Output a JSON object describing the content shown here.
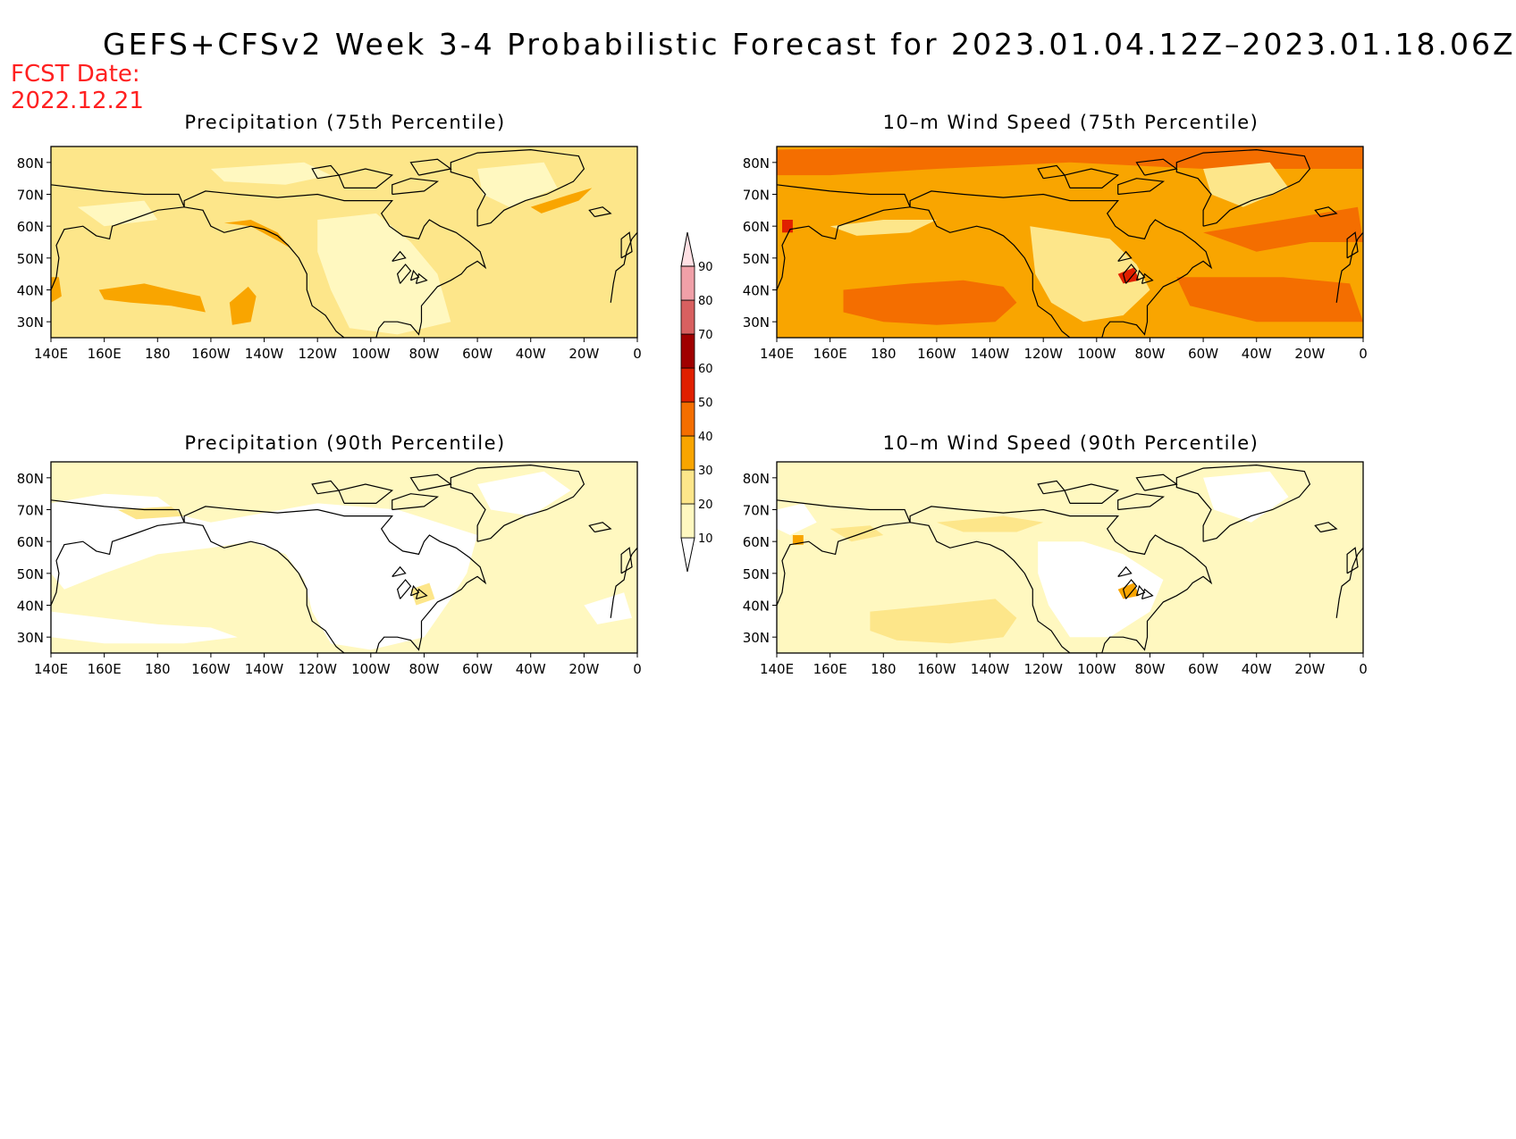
{
  "title": "GEFS+CFSv2 Week 3-4 Probabilistic Forecast for 2023.01.04.12Z–2023.01.18.06Z",
  "fcst_line1": "FCST Date:",
  "fcst_line2": "2022.12.21",
  "panels": [
    {
      "title": "Precipitation (75th Percentile)",
      "field": "precip75"
    },
    {
      "title": "10–m Wind Speed (75th Percentile)",
      "field": "wind75"
    },
    {
      "title": "Precipitation (90th Percentile)",
      "field": "precip90"
    },
    {
      "title": "10–m Wind Speed (90th Percentile)",
      "field": "wind90"
    }
  ],
  "lon_labels": [
    "140E",
    "160E",
    "180",
    "160W",
    "140W",
    "120W",
    "100W",
    "80W",
    "60W",
    "40W",
    "20W",
    "0"
  ],
  "lat_labels": [
    "80N",
    "70N",
    "60N",
    "50N",
    "40N",
    "30N"
  ],
  "colorbar": {
    "levels": [
      "10",
      "20",
      "30",
      "40",
      "50",
      "60",
      "70",
      "80",
      "90"
    ],
    "colors": [
      "#fff8c0",
      "#fde68a",
      "#f9a500",
      "#f46e00",
      "#e02000",
      "#a00000",
      "#d86060",
      "#f0a0a8",
      "#ffe0e4"
    ]
  },
  "colors": {
    "white": "#ffffff",
    "c10": "#fff8c0",
    "c20": "#fde68a",
    "c30": "#f9a500",
    "c40": "#f46e00",
    "c50": "#e02000"
  }
}
